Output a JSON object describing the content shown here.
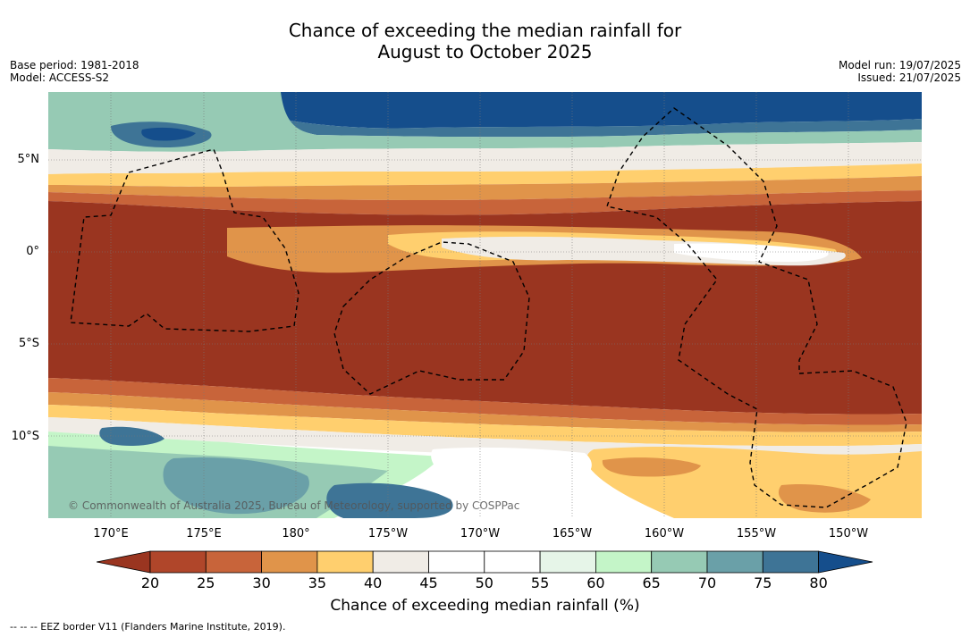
{
  "title_line1": "Chance of exceeding the median rainfall for",
  "title_line2": "August to October 2025",
  "meta_left": {
    "base_period": "Base period: 1981-2018",
    "model": "Model: ACCESS-S2"
  },
  "meta_right": {
    "model_run": "Model run: 19/07/2025",
    "issued": "Issued: 21/07/2025"
  },
  "lat_labels": [
    "5°N",
    "0°",
    "5°S",
    "10°S"
  ],
  "lon_labels": [
    "170°E",
    "175°E",
    "180°",
    "175°W",
    "170°W",
    "165°W",
    "160°W",
    "155°W",
    "150°W"
  ],
  "copyright": "© Commonwealth of Australia 2025, Bureau of Meteorology, supported by COSPPac",
  "colorbar": {
    "ticks": [
      "20",
      "25",
      "30",
      "35",
      "40",
      "45",
      "50",
      "55",
      "60",
      "65",
      "70",
      "75",
      "80"
    ],
    "colors": [
      "#9a3520",
      "#b0462a",
      "#c8643a",
      "#e0944a",
      "#ffcf6e",
      "#f0ece6",
      "#ffffff",
      "#ffffff",
      "#e6f5e8",
      "#c4f5c8",
      "#96cab4",
      "#6aa0a8",
      "#3e7496",
      "#154e8c"
    ],
    "label": "Chance of exceeding median rainfall (%)"
  },
  "footer": "-- -- -- EEZ border V11 (Flanders Marine Institute, 2019)."
}
